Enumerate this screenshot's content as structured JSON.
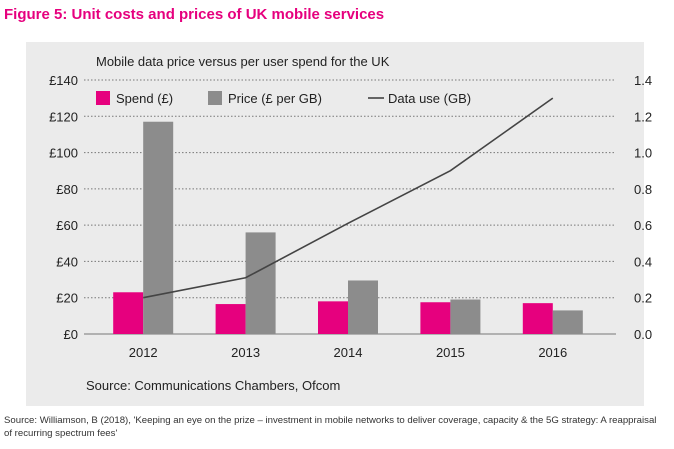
{
  "figure_title": "Figure 5:  Unit costs and prices of UK mobile services",
  "source_note": "Source: Williamson, B (2018), 'Keeping an eye on the prize – investment in mobile networks to deliver coverage, capacity & the 5G strategy: A reappraisal of recurring spectrum fees'",
  "colors": {
    "title": "#e6007e",
    "panel_background": "#ebebeb",
    "spend": "#e6007e",
    "price": "#8c8c8c",
    "data_use": "#444444"
  },
  "chart_data": {
    "type": "bar",
    "title": "Mobile data price versus per user spend for the UK",
    "source": "Source: Communications Chambers, Ofcom",
    "categories": [
      "2012",
      "2013",
      "2014",
      "2015",
      "2016"
    ],
    "y_left": {
      "range": [
        0,
        140
      ],
      "ticks": [
        0,
        20,
        40,
        60,
        80,
        100,
        120,
        140
      ],
      "tick_labels": [
        "£0",
        "£20",
        "£40",
        "£60",
        "£80",
        "£100",
        "£120",
        "£140"
      ]
    },
    "y_right": {
      "range": [
        0,
        1.4
      ],
      "ticks": [
        0,
        0.2,
        0.4,
        0.6,
        0.8,
        1.0,
        1.2,
        1.4
      ],
      "tick_labels": [
        "0.0",
        "0.2",
        "0.4",
        "0.6",
        "0.8",
        "1.0",
        "1.2",
        "1.4"
      ]
    },
    "series": [
      {
        "name": "Spend (£)",
        "type": "bar",
        "axis": "left",
        "color": "#e6007e",
        "values": [
          23,
          16.5,
          18,
          17.5,
          17
        ]
      },
      {
        "name": "Price (£ per GB)",
        "type": "bar",
        "axis": "left",
        "color": "#8c8c8c",
        "values": [
          117,
          56,
          29.5,
          19,
          13
        ]
      },
      {
        "name": "Data use (GB)",
        "type": "line",
        "axis": "right",
        "color": "#444444",
        "values": [
          0.2,
          0.31,
          0.61,
          0.9,
          1.3
        ]
      }
    ],
    "legend_position": "top",
    "grid": "horizontal dotted"
  }
}
